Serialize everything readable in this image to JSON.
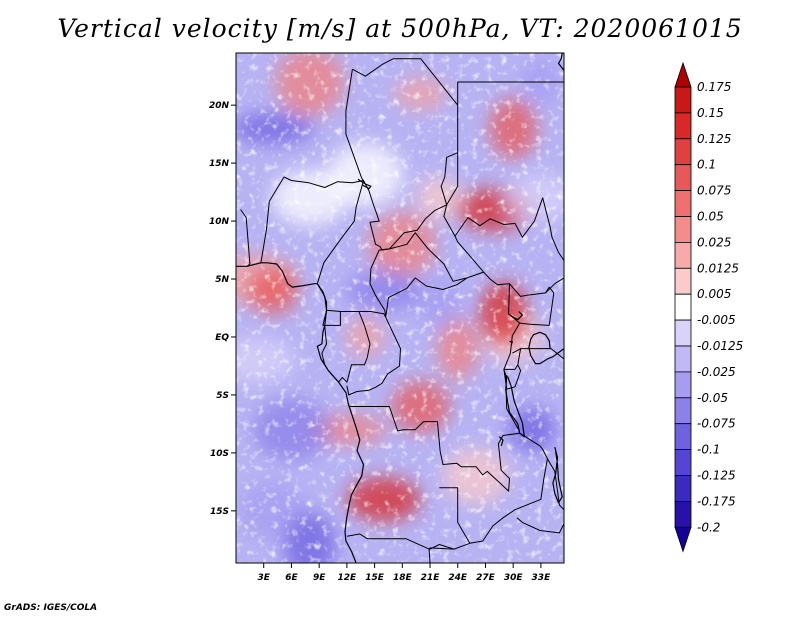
{
  "title": "Vertical velocity [m/s] at 500hPa, VT: 2020061015",
  "credit": "GrADS: IGES/COLA",
  "map": {
    "variable": "Vertical velocity",
    "units": "m/s",
    "level": "500hPa",
    "valid_time": "2020061015",
    "lon_range_deg": [
      0,
      35.5
    ],
    "lat_range_deg": [
      -19.5,
      24.5
    ],
    "lon_ticks": [
      {
        "value": 3,
        "label": "3E"
      },
      {
        "value": 6,
        "label": "6E"
      },
      {
        "value": 9,
        "label": "9E"
      },
      {
        "value": 12,
        "label": "12E"
      },
      {
        "value": 15,
        "label": "15E"
      },
      {
        "value": 18,
        "label": "18E"
      },
      {
        "value": 21,
        "label": "21E"
      },
      {
        "value": 24,
        "label": "24E"
      },
      {
        "value": 27,
        "label": "27E"
      },
      {
        "value": 30,
        "label": "30E"
      },
      {
        "value": 33,
        "label": "33E"
      }
    ],
    "lat_ticks": [
      {
        "value": 20,
        "label": "20N"
      },
      {
        "value": 15,
        "label": "15N"
      },
      {
        "value": 10,
        "label": "10N"
      },
      {
        "value": 5,
        "label": "5N"
      },
      {
        "value": 0,
        "label": "EQ"
      },
      {
        "value": -5,
        "label": "5S"
      },
      {
        "value": -10,
        "label": "10S"
      },
      {
        "value": -15,
        "label": "15S"
      }
    ],
    "borders": [
      [
        [
          12.6,
          23.1
        ],
        [
          14.0,
          22.5
        ],
        [
          15.8,
          23.5
        ],
        [
          17.0,
          24.0
        ],
        [
          20.0,
          24.0
        ],
        [
          24.0,
          20.0
        ],
        [
          24.0,
          15.9
        ],
        [
          22.8,
          15.5
        ],
        [
          22.6,
          13.8
        ],
        [
          22.2,
          13.0
        ],
        [
          22.8,
          11.4
        ],
        [
          21.5,
          10.9
        ],
        [
          20.5,
          10.2
        ],
        [
          19.6,
          9.2
        ],
        [
          18.2,
          9.0
        ],
        [
          16.6,
          7.6
        ],
        [
          15.8,
          7.5
        ],
        [
          15.6,
          7.8
        ],
        [
          15.1,
          8.0
        ],
        [
          14.5,
          9.9
        ],
        [
          15.5,
          10.0
        ],
        [
          14.8,
          11.6
        ],
        [
          14.4,
          12.6
        ],
        [
          13.8,
          13.5
        ]
      ],
      [
        [
          12.6,
          23.1
        ],
        [
          11.9,
          19.5
        ],
        [
          11.9,
          17.5
        ],
        [
          13.6,
          13.7
        ],
        [
          13.8,
          13.5
        ],
        [
          12.6,
          13.3
        ],
        [
          11.0,
          13.4
        ],
        [
          9.6,
          12.9
        ],
        [
          7.9,
          13.3
        ],
        [
          6.0,
          13.5
        ],
        [
          5.2,
          13.8
        ],
        [
          3.6,
          11.7
        ]
      ],
      [
        [
          13.8,
          13.5
        ],
        [
          13.0,
          11.2
        ],
        [
          12.8,
          10.0
        ],
        [
          11.2,
          8.3
        ],
        [
          9.5,
          6.4
        ],
        [
          8.8,
          4.6
        ]
      ],
      [
        [
          2.7,
          6.4
        ],
        [
          3.3,
          9.3
        ],
        [
          3.6,
          11.7
        ]
      ],
      [
        [
          0.5,
          11.0
        ],
        [
          1.1,
          10.3
        ],
        [
          1.5,
          6.3
        ],
        [
          1.2,
          6.1
        ]
      ],
      [
        [
          24.0,
          20.0
        ],
        [
          24.0,
          22.0
        ],
        [
          25.0,
          22.0
        ],
        [
          35.5,
          22.0
        ]
      ],
      [
        [
          24.0,
          15.9
        ],
        [
          24.0,
          13.0
        ],
        [
          22.8,
          11.4
        ],
        [
          22.5,
          10.4
        ],
        [
          23.7,
          8.7
        ],
        [
          25.1,
          10.3
        ],
        [
          26.4,
          9.6
        ],
        [
          27.5,
          10.2
        ],
        [
          29.0,
          9.7
        ],
        [
          30.2,
          9.8
        ],
        [
          31.0,
          8.6
        ],
        [
          32.3,
          10.0
        ],
        [
          33.2,
          12.0
        ],
        [
          34.0,
          9.5
        ],
        [
          34.2,
          8.6
        ],
        [
          34.9,
          7.3
        ],
        [
          35.5,
          6.6
        ]
      ],
      [
        [
          23.7,
          8.7
        ],
        [
          24.0,
          8.2
        ],
        [
          25.2,
          7.1
        ],
        [
          26.8,
          5.6
        ],
        [
          27.5,
          5.0
        ],
        [
          28.3,
          4.5
        ],
        [
          29.6,
          4.6
        ],
        [
          30.8,
          3.5
        ],
        [
          31.5,
          3.6
        ],
        [
          33.5,
          3.8
        ],
        [
          34.5,
          4.6
        ],
        [
          35.5,
          5.1
        ]
      ],
      [
        [
          15.5,
          7.5
        ],
        [
          16.6,
          7.6
        ],
        [
          18.5,
          8.0
        ],
        [
          19.4,
          9.0
        ],
        [
          20.8,
          7.6
        ],
        [
          22.5,
          6.3
        ],
        [
          23.5,
          4.8
        ],
        [
          25.0,
          5.1
        ],
        [
          26.8,
          5.6
        ]
      ],
      [
        [
          15.5,
          7.5
        ],
        [
          14.6,
          5.9
        ],
        [
          14.5,
          4.6
        ],
        [
          15.1,
          3.6
        ],
        [
          16.1,
          2.3
        ],
        [
          16.2,
          1.7
        ],
        [
          16.5,
          3.4
        ],
        [
          18.5,
          4.2
        ],
        [
          19.4,
          5.1
        ],
        [
          20.6,
          4.4
        ],
        [
          22.4,
          4.1
        ],
        [
          23.9,
          4.5
        ],
        [
          25.0,
          5.1
        ]
      ],
      [
        [
          8.8,
          4.6
        ],
        [
          9.6,
          3.5
        ],
        [
          9.8,
          2.3
        ],
        [
          11.3,
          2.2
        ],
        [
          13.3,
          2.2
        ],
        [
          14.6,
          2.2
        ],
        [
          16.0,
          2.0
        ],
        [
          16.2,
          1.7
        ]
      ],
      [
        [
          9.8,
          2.3
        ],
        [
          9.4,
          1.0
        ],
        [
          11.3,
          1.0
        ],
        [
          11.3,
          2.2
        ]
      ],
      [
        [
          9.6,
          1.0
        ],
        [
          9.8,
          -0.6
        ],
        [
          9.3,
          -1.4
        ],
        [
          9.6,
          -2.4
        ],
        [
          10.0,
          -2.9
        ],
        [
          11.1,
          -3.9
        ],
        [
          11.5,
          -3.5
        ],
        [
          12.0,
          -3.9
        ],
        [
          12.5,
          -2.4
        ],
        [
          13.9,
          -2.4
        ],
        [
          14.2,
          -1.8
        ],
        [
          14.5,
          -0.6
        ],
        [
          13.9,
          1.0
        ],
        [
          13.3,
          2.2
        ]
      ],
      [
        [
          16.2,
          1.7
        ],
        [
          17.8,
          -1.0
        ],
        [
          17.7,
          -2.5
        ],
        [
          16.4,
          -3.2
        ],
        [
          15.8,
          -4.0
        ],
        [
          15.2,
          -4.3
        ],
        [
          14.4,
          -4.6
        ],
        [
          13.1,
          -4.7
        ],
        [
          12.2,
          -5.0
        ],
        [
          12.0,
          -4.2
        ]
      ],
      [
        [
          29.6,
          4.6
        ],
        [
          29.5,
          2.0
        ],
        [
          30.7,
          1.2
        ],
        [
          29.9,
          0.1
        ],
        [
          29.7,
          -1.4
        ],
        [
          29.0,
          -2.8
        ],
        [
          29.2,
          -3.3
        ],
        [
          29.3,
          -6.2
        ],
        [
          30.6,
          -8.0
        ],
        [
          30.7,
          -8.3
        ],
        [
          28.9,
          -8.5
        ],
        [
          28.4,
          -9.2
        ],
        [
          28.7,
          -11.5
        ],
        [
          29.6,
          -12.2
        ],
        [
          29.5,
          -13.3
        ],
        [
          28.3,
          -12.4
        ],
        [
          27.2,
          -11.6
        ],
        [
          26.7,
          -11.9
        ],
        [
          26.0,
          -11.2
        ],
        [
          24.4,
          -11.2
        ],
        [
          23.9,
          -10.9
        ],
        [
          22.4,
          -11.0
        ],
        [
          22.1,
          -9.9
        ],
        [
          21.8,
          -7.3
        ],
        [
          20.3,
          -7.3
        ],
        [
          19.4,
          -8.0
        ],
        [
          18.1,
          -8.0
        ],
        [
          17.5,
          -8.1
        ],
        [
          16.6,
          -6.0
        ],
        [
          13.0,
          -6.0
        ],
        [
          12.2,
          -6.0
        ]
      ],
      [
        [
          30.7,
          1.2
        ],
        [
          31.8,
          1.1
        ],
        [
          33.9,
          1.0
        ],
        [
          34.4,
          3.8
        ],
        [
          33.9,
          4.3
        ],
        [
          33.5,
          3.8
        ]
      ],
      [
        [
          29.9,
          -1.4
        ],
        [
          30.6,
          -1.1
        ],
        [
          30.8,
          -1.0
        ],
        [
          31.5,
          -1.0
        ],
        [
          33.9,
          -1.0
        ],
        [
          34.1,
          -1.0
        ],
        [
          35.5,
          -1.9
        ]
      ],
      [
        [
          30.8,
          -1.0
        ],
        [
          30.5,
          -2.4
        ],
        [
          30.2,
          -2.8
        ],
        [
          29.0,
          -2.8
        ]
      ],
      [
        [
          29.0,
          -2.8
        ],
        [
          29.3,
          -4.5
        ],
        [
          30.2,
          -4.3
        ],
        [
          30.6,
          -3.4
        ],
        [
          30.8,
          -2.9
        ],
        [
          30.5,
          -2.4
        ]
      ],
      [
        [
          30.7,
          -8.3
        ],
        [
          32.9,
          -9.4
        ],
        [
          33.2,
          -9.7
        ],
        [
          33.7,
          -10.5
        ],
        [
          33.3,
          -12.3
        ],
        [
          33.0,
          -14.0
        ],
        [
          30.2,
          -14.9
        ],
        [
          28.9,
          -15.6
        ],
        [
          27.8,
          -16.3
        ],
        [
          26.7,
          -17.6
        ],
        [
          25.3,
          -17.8
        ],
        [
          23.6,
          -18.3
        ],
        [
          22.0,
          -17.9
        ],
        [
          21.0,
          -18.3
        ],
        [
          20.9,
          -18.3
        ]
      ],
      [
        [
          33.7,
          -10.5
        ],
        [
          34.5,
          -11.6
        ],
        [
          35.0,
          -14.5
        ],
        [
          35.5,
          -14.9
        ]
      ],
      [
        [
          35.5,
          -16.1
        ],
        [
          35.0,
          -16.9
        ],
        [
          32.9,
          -16.7
        ],
        [
          31.0,
          -16.0
        ],
        [
          30.4,
          -15.6
        ]
      ],
      [
        [
          22.0,
          -13.0
        ],
        [
          24.0,
          -13.0
        ],
        [
          24.0,
          -16.0
        ],
        [
          25.3,
          -17.8
        ]
      ],
      [
        [
          12.0,
          -17.2
        ],
        [
          13.4,
          -17.0
        ],
        [
          14.2,
          -17.4
        ],
        [
          18.4,
          -17.4
        ],
        [
          20.9,
          -18.3
        ],
        [
          21.0,
          -18.2
        ],
        [
          23.6,
          -18.3
        ]
      ],
      [
        [
          20.9,
          -18.3
        ],
        [
          21.0,
          -19.5
        ]
      ]
    ],
    "coastlines": [
      [
        [
          0,
          6.1
        ],
        [
          1.2,
          6.1
        ],
        [
          2.7,
          6.4
        ],
        [
          3.4,
          6.4
        ],
        [
          4.4,
          6.3
        ],
        [
          5.0,
          5.7
        ],
        [
          5.6,
          4.6
        ],
        [
          6.1,
          4.3
        ],
        [
          7.0,
          4.4
        ],
        [
          7.8,
          4.5
        ],
        [
          8.5,
          4.6
        ],
        [
          8.8,
          4.6
        ],
        [
          9.4,
          3.9
        ],
        [
          9.8,
          3.0
        ],
        [
          9.8,
          2.3
        ],
        [
          9.6,
          1.0
        ],
        [
          9.4,
          0.4
        ],
        [
          9.3,
          -0.6
        ],
        [
          8.8,
          -0.8
        ],
        [
          9.2,
          -1.9
        ],
        [
          10.0,
          -2.9
        ],
        [
          11.1,
          -3.9
        ],
        [
          11.9,
          -4.8
        ],
        [
          12.2,
          -5.9
        ],
        [
          12.3,
          -6.1
        ],
        [
          13.0,
          -7.8
        ],
        [
          13.4,
          -8.9
        ],
        [
          13.1,
          -9.8
        ],
        [
          13.8,
          -11.0
        ],
        [
          13.6,
          -12.0
        ],
        [
          12.9,
          -13.0
        ],
        [
          12.5,
          -13.6
        ],
        [
          12.3,
          -14.3
        ],
        [
          12.0,
          -15.5
        ],
        [
          11.8,
          -16.8
        ],
        [
          11.9,
          -17.6
        ],
        [
          12.5,
          -18.5
        ],
        [
          13.0,
          -19.5
        ]
      ],
      [
        [
          35.5,
          -1.0
        ],
        [
          34.3,
          -1.7
        ],
        [
          33.7,
          -1.9
        ],
        [
          32.9,
          -2.3
        ],
        [
          32.4,
          -2.3
        ],
        [
          31.9,
          -1.6
        ],
        [
          31.7,
          -0.9
        ],
        [
          31.9,
          -0.2
        ],
        [
          32.2,
          0.2
        ],
        [
          32.9,
          0.4
        ],
        [
          33.5,
          0.2
        ],
        [
          33.9,
          -0.3
        ],
        [
          34.0,
          -1.0
        ]
      ],
      [
        [
          29.3,
          -3.3
        ],
        [
          29.2,
          -4.6
        ],
        [
          29.4,
          -5.6
        ],
        [
          29.6,
          -6.5
        ],
        [
          30.5,
          -7.5
        ],
        [
          30.7,
          -8.3
        ],
        [
          31.2,
          -8.6
        ],
        [
          31.0,
          -7.4
        ],
        [
          30.7,
          -6.8
        ],
        [
          30.1,
          -5.5
        ],
        [
          29.8,
          -4.3
        ],
        [
          29.4,
          -3.4
        ]
      ],
      [
        [
          34.5,
          -9.5
        ],
        [
          34.8,
          -10.4
        ],
        [
          34.6,
          -11.8
        ],
        [
          34.3,
          -12.6
        ],
        [
          34.5,
          -13.5
        ],
        [
          34.9,
          -14.3
        ],
        [
          35.3,
          -13.8
        ],
        [
          34.9,
          -12.3
        ],
        [
          34.8,
          -11.0
        ],
        [
          34.6,
          -9.9
        ]
      ],
      [
        [
          29.8,
          1.8
        ],
        [
          30.5,
          1.5
        ],
        [
          31.0,
          1.9
        ],
        [
          30.6,
          2.2
        ]
      ],
      [
        [
          29.6,
          -0.4
        ],
        [
          29.9,
          -0.4
        ],
        [
          29.8,
          -0.7
        ]
      ],
      [
        [
          28.5,
          -8.6
        ],
        [
          28.9,
          -8.9
        ],
        [
          28.7,
          -9.4
        ]
      ],
      [
        [
          35.5,
          23.0
        ],
        [
          35.3,
          23.2
        ],
        [
          34.9,
          23.6
        ],
        [
          35.2,
          24.0
        ],
        [
          35.3,
          24.5
        ]
      ],
      [
        [
          13.2,
          13.6
        ],
        [
          14.0,
          13.2
        ],
        [
          14.6,
          13.0
        ],
        [
          14.4,
          12.8
        ],
        [
          13.7,
          13.1
        ]
      ]
    ]
  },
  "colorbar": {
    "levels": [
      "0.175",
      "0.15",
      "0.125",
      "0.1",
      "0.075",
      "0.05",
      "0.025",
      "0.0125",
      "0.005",
      "-0.005",
      "-0.0125",
      "-0.025",
      "-0.05",
      "-0.075",
      "-0.1",
      "-0.125",
      "-0.175",
      "-0.2"
    ],
    "colors": [
      "#b00000",
      "#c81818",
      "#d82828",
      "#e04040",
      "#e85858",
      "#f07070",
      "#f48c8c",
      "#f7aaaa",
      "#fbcaca",
      "#ffffff",
      "#d9d3fb",
      "#c0b8f7",
      "#a69cf1",
      "#8c80ea",
      "#6f62e0",
      "#5445d4",
      "#3a2ac2",
      "#2810aa",
      "#16009a"
    ]
  }
}
